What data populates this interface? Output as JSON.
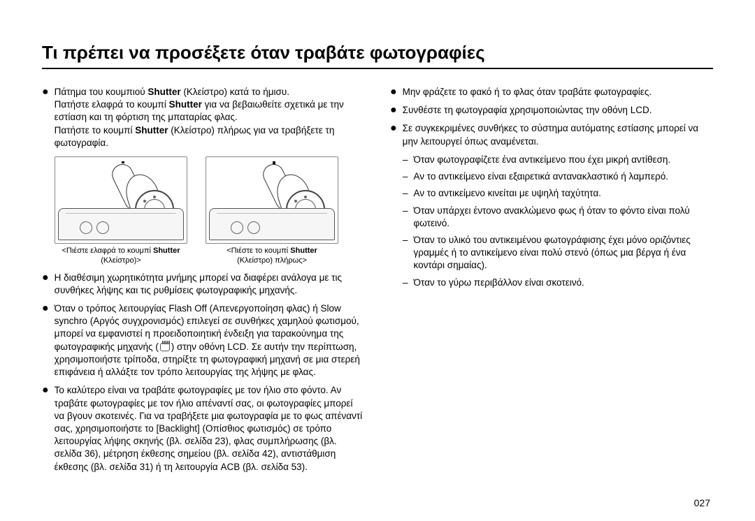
{
  "title": "Τι πρέπει να προσέξετε όταν τραβάτε φωτογραφίες",
  "left": {
    "b1": {
      "intro_a": "Πάτημα του κουμπιού ",
      "intro_b": "Shutter",
      "intro_c": " (Κλείστρο) κατά το ήμισυ.",
      "line2a": "Πατήστε ελαφρά το κουμπί ",
      "line2b": "Shutter",
      "line2c": " για να βεβαιωθείτε σχετικά με την εστίαση και τη φόρτιση της μπαταρίας φλας.",
      "line3a": "Πατήστε το κουμπί ",
      "line3b": "Shutter",
      "line3c": " (Κλείστρο) πλήρως για να τραβήξετε τη φωτογραφία."
    },
    "fig1_cap_a": "<Πιέστε ελαφρά το κουμπί ",
    "fig1_cap_b": "Shutter",
    "fig1_cap_c": " (Κλείστρο)>",
    "fig2_cap_a": "<Πιέστε το κουμπί ",
    "fig2_cap_b": "Shutter",
    "fig2_cap_c": " (Κλείστρο) πλήρως>",
    "b2": "Η διαθέσιμη χωρητικότητα μνήμης μπορεί να διαφέρει ανάλογα με τις συνθήκες λήψης και τις ρυθμίσεις φωτογραφικής μηχανής.",
    "b3_a": "Όταν ο τρόπος λειτουργίας Flash Off (Απενεργοποίηση φλας) ή Slow synchro (Αργός συγχρονισμός) επιλεγεί σε συνθήκες χαμηλού φωτισμού, μπορεί να εμφανιστεί η προειδοποιητική ένδειξη για ταρακούνημα της φωτογραφικής μηχανής (",
    "b3_b": ") στην οθόνη LCD. Σε αυτήν την περίπτωση, χρησιμοποιήστε τρίποδα, στηρίξτε τη φωτογραφική μηχανή σε μια στερεή επιφάνεια ή αλλάξτε τον τρόπο λειτουργίας της λήψης με φλας.",
    "b4": "Το καλύτερο είναι να τραβάτε φωτογραφίες με τον ήλιο στο φόντο. Αν τραβάτε φωτογραφίες με τον ήλιο απέναντί σας, οι φωτογραφίες μπορεί να βγουν σκοτεινές. Για να τραβήξετε μια φωτογραφία με το φως απέναντί σας, χρησιμοποιήστε το [Backlight] (Οπίσθιος φωτισμός) σε τρόπο λειτουργίας λήψης σκηνής (βλ. σελίδα 23), φλας συμπλήρωσης (βλ. σελίδα 36), μέτρηση έκθεσης σημείου (βλ. σελίδα 42), αντιστάθμιση έκθεσης (βλ. σελίδα 31) ή τη λειτουργία ACB (βλ. σελίδα 53)."
  },
  "right": {
    "b1": "Μην φράζετε το φακό ή το φλας όταν τραβάτε φωτογραφίες.",
    "b2": "Συνθέστε τη φωτογραφία χρησιμοποιώντας την οθόνη LCD.",
    "b3": "Σε συγκεκριμένες συνθήκες το σύστημα αυτόματης εστίασης μπορεί να μην λειτουργεί όπως αναμένεται.",
    "s1": "Όταν φωτογραφίζετε ένα αντικείμενο που έχει μικρή αντίθεση.",
    "s2": "Αν το αντικείμενο είναι εξαιρετικά αντανακλαστικό ή λαμπερό.",
    "s3": "Αν το αντικείμενο κινείται με υψηλή ταχύτητα.",
    "s4": "Όταν υπάρχει έντονο ανακλώμενο φως ή όταν το φόντο είναι πολύ φωτεινό.",
    "s5": "Όταν το υλικό του αντικειμένου φωτογράφισης έχει μόνο οριζόντιες γραμμές ή το αντικείμενο είναι πολύ στενό (όπως μια βέργα ή ένα κοντάρι σημαίας).",
    "s6": "Όταν το γύρω περιβάλλον είναι σκοτεινό."
  },
  "page_number": "027"
}
